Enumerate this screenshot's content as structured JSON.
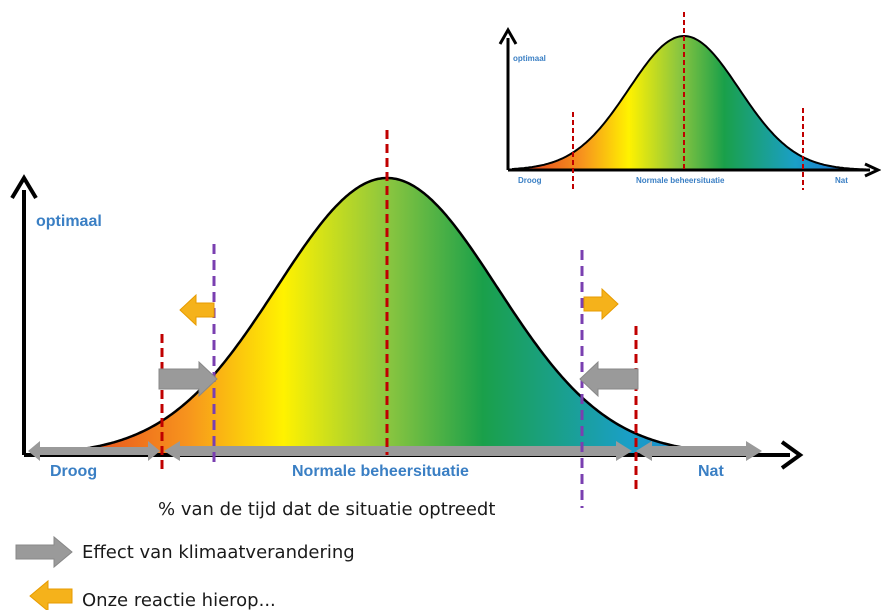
{
  "colors": {
    "axis": "#000000",
    "curve_outline": "#000000",
    "red_dash": "#c00000",
    "purple_dash": "#7a3fb0",
    "grey_arrow": "#9a9a9a",
    "orange_arrow": "#f5b21b",
    "label_blue": "#3a7fc4",
    "gradient": [
      "#e0301e",
      "#f7941d",
      "#fff200",
      "#8cc63f",
      "#1aa04a",
      "#1a9fc8",
      "#1b5fd0"
    ]
  },
  "main": {
    "y_axis_label": "optimaal",
    "zones": {
      "dry": "Droog",
      "normal": "Normale beheersituatie",
      "wet": "Nat"
    },
    "x_axis_label": "% van de tijd dat de situatie optreedt"
  },
  "inset": {
    "y_axis_label": "optimaal",
    "zones": {
      "dry": "Droog",
      "normal": "Normale beheersituatie",
      "wet": "Nat"
    }
  },
  "legend": {
    "grey_arrow_label": "Effect van klimaatverandering",
    "orange_arrow_label": "Onze reactie hierop..."
  },
  "icons": [
    "grey-arrow-icon",
    "orange-arrow-icon"
  ]
}
